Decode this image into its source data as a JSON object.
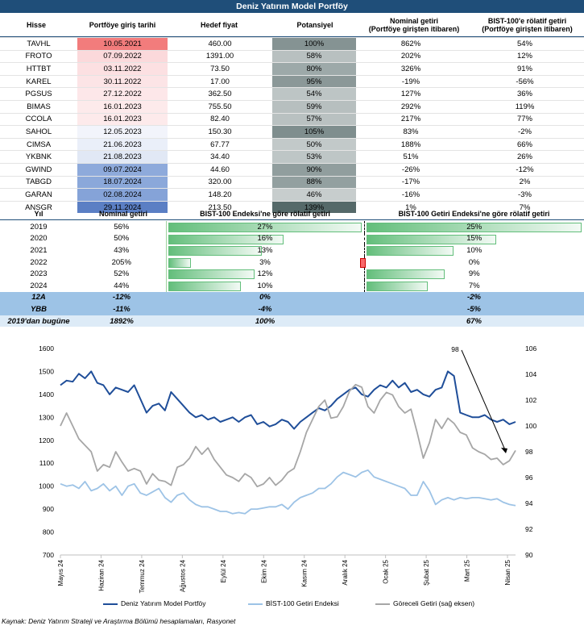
{
  "title": "Deniz Yatırım Model Portföy",
  "portfolio": {
    "headers": [
      "Hisse",
      "Portföye giriş tarihi",
      "Hedef fiyat",
      "Potansiyel",
      "Nominal getiri\n(Portföye girişten itibaren)",
      "BIST-100'e rölatif getiri\n(Portföye girişten itibaren)"
    ],
    "rows": [
      {
        "ticker": "TAVHL",
        "date": "10.05.2021",
        "target": "460.00",
        "pot": "100%",
        "pot_v": 100,
        "nom": "862%",
        "rel": "54%",
        "date_color": "#f27c7c"
      },
      {
        "ticker": "FROTO",
        "date": "07.09.2022",
        "target": "1391.00",
        "pot": "58%",
        "pot_v": 58,
        "nom": "202%",
        "rel": "12%",
        "date_color": "#fbd9db"
      },
      {
        "ticker": "HTTBT",
        "date": "03.11.2022",
        "target": "73.50",
        "pot": "80%",
        "pot_v": 80,
        "nom": "326%",
        "rel": "91%",
        "date_color": "#fce0e2"
      },
      {
        "ticker": "KAREL",
        "date": "30.11.2022",
        "target": "17.00",
        "pot": "95%",
        "pot_v": 95,
        "nom": "-19%",
        "rel": "-56%",
        "date_color": "#fce4e6"
      },
      {
        "ticker": "PGSUS",
        "date": "27.12.2022",
        "target": "362.50",
        "pot": "54%",
        "pot_v": 54,
        "nom": "127%",
        "rel": "36%",
        "date_color": "#fde7e9"
      },
      {
        "ticker": "BIMAS",
        "date": "16.01.2023",
        "target": "755.50",
        "pot": "59%",
        "pot_v": 59,
        "nom": "292%",
        "rel": "119%",
        "date_color": "#fdeaeb"
      },
      {
        "ticker": "CCOLA",
        "date": "16.01.2023",
        "target": "82.40",
        "pot": "57%",
        "pot_v": 57,
        "nom": "217%",
        "rel": "77%",
        "date_color": "#fdeaeb"
      },
      {
        "ticker": "SAHOL",
        "date": "12.05.2023",
        "target": "150.30",
        "pot": "105%",
        "pot_v": 105,
        "nom": "83%",
        "rel": "-2%",
        "date_color": "#f2f4fb"
      },
      {
        "ticker": "CIMSA",
        "date": "21.06.2023",
        "target": "67.77",
        "pot": "50%",
        "pot_v": 50,
        "nom": "188%",
        "rel": "66%",
        "date_color": "#eaeff9"
      },
      {
        "ticker": "YKBNK",
        "date": "21.08.2023",
        "target": "34.40",
        "pot": "53%",
        "pot_v": 53,
        "nom": "51%",
        "rel": "26%",
        "date_color": "#e1e8f5"
      },
      {
        "ticker": "GWIND",
        "date": "09.07.2024",
        "target": "44.60",
        "pot": "90%",
        "pot_v": 90,
        "nom": "-26%",
        "rel": "-12%",
        "date_color": "#8eaadb"
      },
      {
        "ticker": "TABGD",
        "date": "18.07.2024",
        "target": "320.00",
        "pot": "88%",
        "pot_v": 88,
        "nom": "-17%",
        "rel": "2%",
        "date_color": "#8ba8da"
      },
      {
        "ticker": "GARAN",
        "date": "02.08.2024",
        "target": "148.20",
        "pot": "46%",
        "pot_v": 46,
        "nom": "-16%",
        "rel": "-3%",
        "date_color": "#85a3d8"
      },
      {
        "ticker": "ANSGR",
        "date": "29.11.2024",
        "target": "213.50",
        "pot": "139%",
        "pot_v": 139,
        "nom": "1%",
        "rel": "7%",
        "date_color": "#5b7fc4"
      }
    ]
  },
  "yearly": {
    "headers": [
      "Yıl",
      "Nominal getiri",
      "BIST-100 Endeksi'ne göre rölatif getiri",
      "BIST-100 Getiri Endeksi'ne göre rölatif getiri"
    ],
    "rows": [
      {
        "year": "2019",
        "nom": "56%",
        "rel1": "27%",
        "rel1_v": 27,
        "rel2": "25%",
        "rel2_v": 25
      },
      {
        "year": "2020",
        "nom": "50%",
        "rel1": "16%",
        "rel1_v": 16,
        "rel2": "15%",
        "rel2_v": 15
      },
      {
        "year": "2021",
        "nom": "43%",
        "rel1": "13%",
        "rel1_v": 13,
        "rel2": "10%",
        "rel2_v": 10
      },
      {
        "year": "2022",
        "nom": "205%",
        "rel1": "3%",
        "rel1_v": 3,
        "rel2": "0%",
        "rel2_v": -0.4
      },
      {
        "year": "2023",
        "nom": "52%",
        "rel1": "12%",
        "rel1_v": 12,
        "rel2": "9%",
        "rel2_v": 9
      },
      {
        "year": "2024",
        "nom": "44%",
        "rel1": "10%",
        "rel1_v": 10,
        "rel2": "7%",
        "rel2_v": 7
      }
    ],
    "summary": [
      {
        "label": "12A",
        "nom": "-12%",
        "rel1": "0%",
        "rel2": "-2%"
      },
      {
        "label": "YBB",
        "nom": "-11%",
        "rel1": "-4%",
        "rel2": "-5%"
      },
      {
        "label": "2019'dan bugüne",
        "nom": "1892%",
        "rel1": "100%",
        "rel2": "67%"
      }
    ]
  },
  "chart_data": {
    "type": "line",
    "x_ticks": [
      "Mayıs 24",
      "Haziran 24",
      "Temmuz 24",
      "Ağustos 24",
      "Eylül 24",
      "Ekim 24",
      "Kasım 24",
      "Aralık 24",
      "Ocak 25",
      "Şubat 25",
      "Mart 25",
      "Nisan 25"
    ],
    "ylim_left": [
      700,
      1600
    ],
    "ylim_right": [
      90,
      106
    ],
    "yticks_left": [
      700,
      800,
      900,
      1000,
      1100,
      1200,
      1300,
      1400,
      1500,
      1600
    ],
    "yticks_right": [
      90,
      92,
      94,
      96,
      98,
      100,
      102,
      104,
      106
    ],
    "annotation": "98",
    "series": [
      {
        "name": "Deniz Yatırım Model Portföy",
        "axis": "left",
        "color": "#1f4e99",
        "values": [
          1440,
          1460,
          1455,
          1490,
          1470,
          1500,
          1450,
          1440,
          1400,
          1430,
          1420,
          1410,
          1440,
          1380,
          1320,
          1350,
          1360,
          1330,
          1410,
          1380,
          1350,
          1320,
          1300,
          1310,
          1290,
          1300,
          1280,
          1290,
          1300,
          1280,
          1300,
          1310,
          1270,
          1280,
          1260,
          1270,
          1290,
          1280,
          1250,
          1280,
          1300,
          1320,
          1340,
          1330,
          1350,
          1380,
          1400,
          1420,
          1430,
          1400,
          1390,
          1420,
          1440,
          1430,
          1460,
          1430,
          1450,
          1410,
          1420,
          1400,
          1390,
          1420,
          1430,
          1500,
          1480,
          1320,
          1310,
          1300,
          1300,
          1310,
          1290,
          1280,
          1290,
          1270,
          1280
        ]
      },
      {
        "name": "BİST-100 Getiri Endeksi",
        "axis": "left",
        "color": "#9dc3e6",
        "values": [
          1010,
          1000,
          1005,
          990,
          1020,
          980,
          990,
          1010,
          980,
          1000,
          960,
          1000,
          1010,
          970,
          960,
          975,
          990,
          950,
          930,
          960,
          970,
          940,
          920,
          910,
          910,
          900,
          890,
          890,
          880,
          885,
          880,
          900,
          900,
          905,
          910,
          910,
          920,
          900,
          930,
          950,
          960,
          970,
          990,
          990,
          1010,
          1040,
          1060,
          1050,
          1040,
          1060,
          1070,
          1040,
          1030,
          1020,
          1010,
          1000,
          990,
          960,
          960,
          1020,
          980,
          920,
          940,
          950,
          940,
          950,
          945,
          950,
          950,
          945,
          940,
          945,
          930,
          920,
          915
        ]
      },
      {
        "name": "Göreceli Getiri (sağ eksen)",
        "axis": "right",
        "color": "#a6a6a6",
        "values": [
          100,
          101,
          100,
          99,
          98.5,
          98,
          96.5,
          97,
          96.8,
          98,
          97.2,
          96.5,
          96.7,
          96.5,
          95.5,
          96.3,
          95.8,
          95.7,
          95.4,
          96.8,
          97,
          97.5,
          98.4,
          97.8,
          98.3,
          97.4,
          96.8,
          96.2,
          96,
          95.7,
          96.3,
          96,
          95.3,
          95.5,
          96,
          95.4,
          95.8,
          96.4,
          96.7,
          98,
          99.5,
          100.5,
          101.5,
          102,
          100.6,
          100.7,
          101.5,
          102.7,
          103.2,
          103,
          101.5,
          101,
          102,
          102.6,
          102.4,
          101.5,
          101,
          101.3,
          99.5,
          97.5,
          98.7,
          100.5,
          99.8,
          100.6,
          100.2,
          99.5,
          99.3,
          98.3,
          98,
          97.8,
          97.4,
          97.5,
          97,
          97.3,
          98.1
        ]
      }
    ]
  },
  "legend": [
    "Deniz Yatırım Model Portföy",
    "BİST-100 Getiri Endeksi",
    "Göreceli Getiri (sağ eksen)"
  ],
  "source": "Kaynak: Deniz Yatırım Strateji ve Araştırma Bölümü hesaplamaları, Rasyonet"
}
